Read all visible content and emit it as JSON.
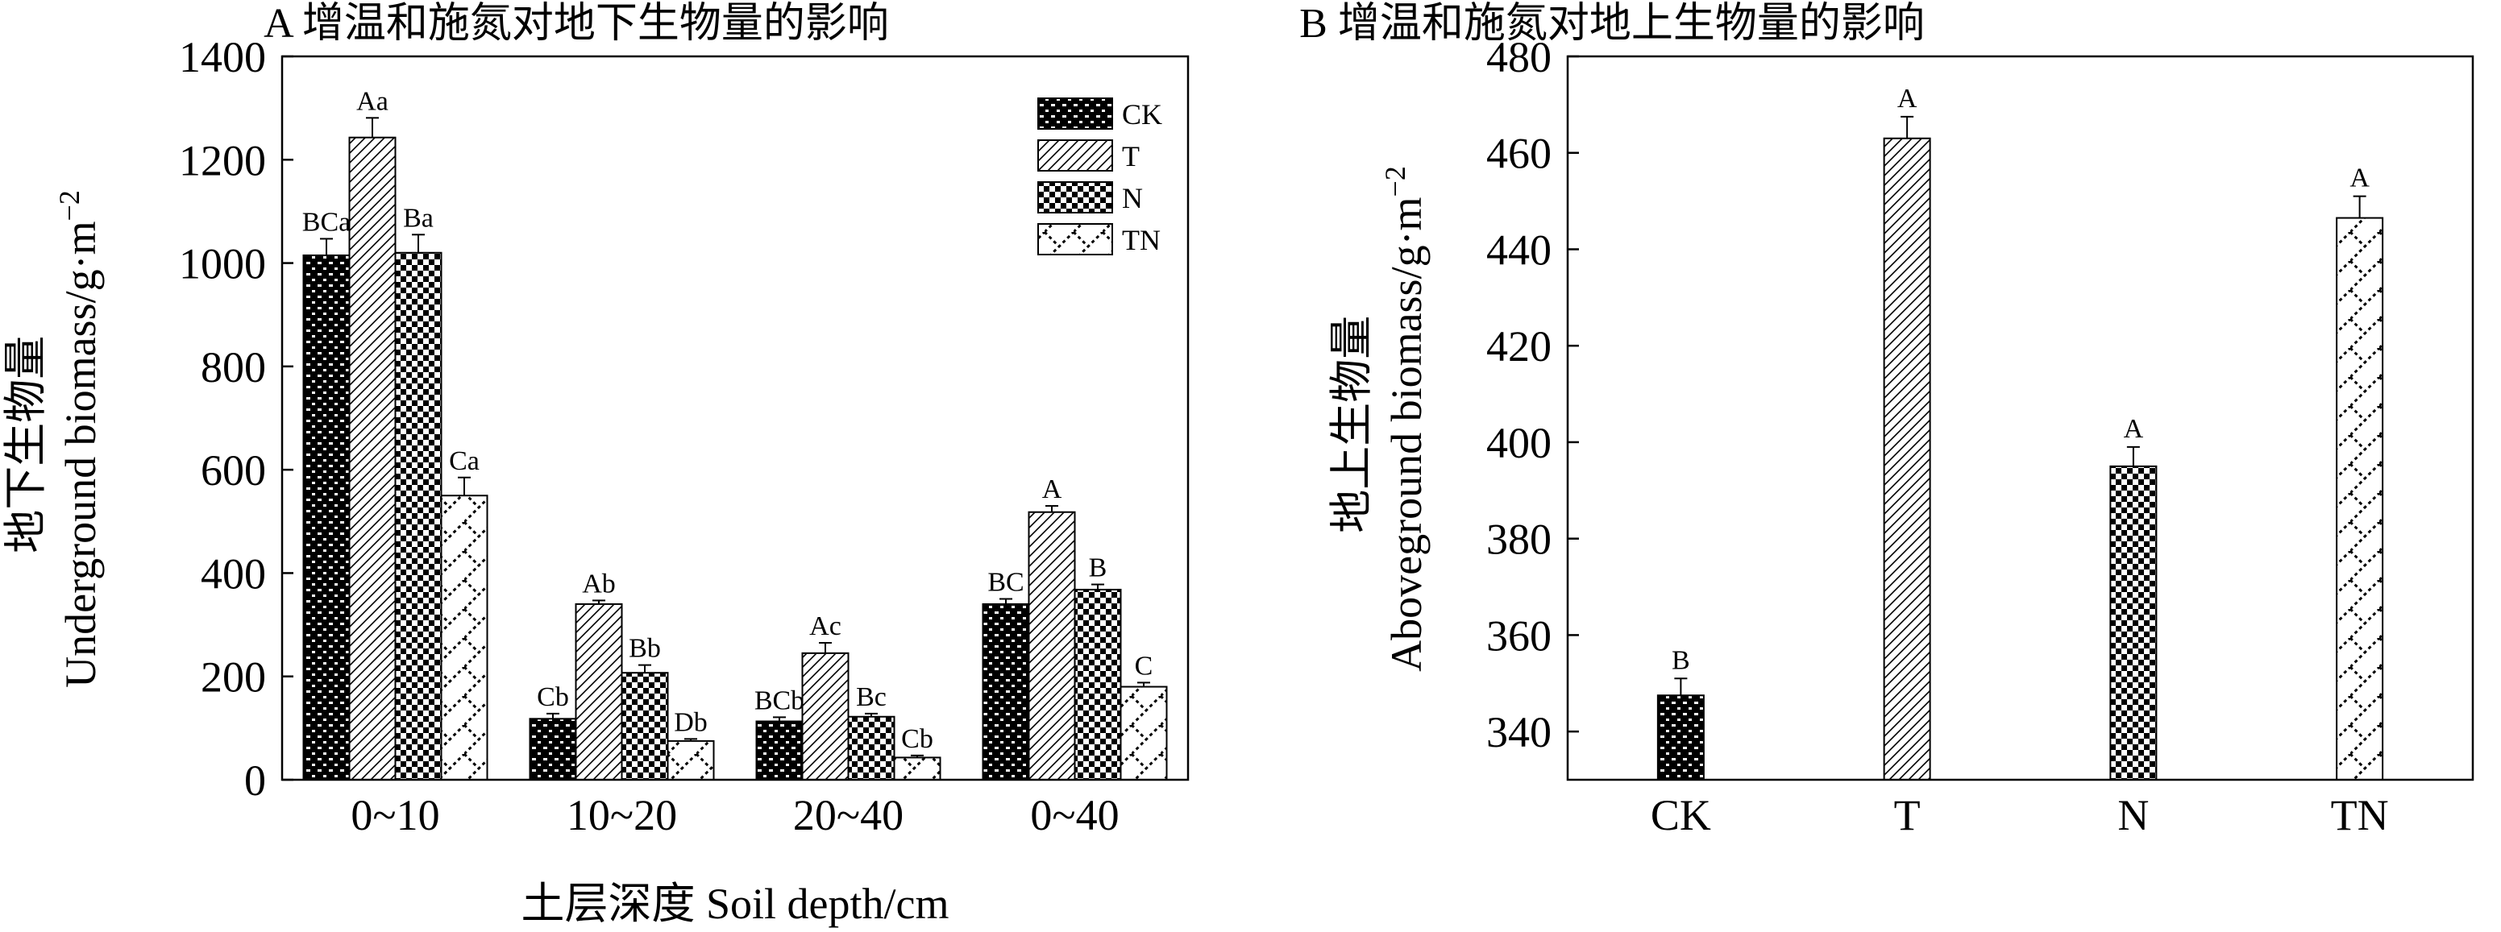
{
  "chart_data": [
    {
      "type": "bar",
      "title": "A 增温和施氮对地下生物量的影响",
      "xlabel": "土层深度 Soil depth/cm",
      "ylabel_cn": "地下生物量",
      "ylabel_en": "Underground biomass/g·m",
      "ylabel_sup": "−2",
      "ylim": [
        0,
        1400
      ],
      "yticks": [
        "0",
        "200",
        "400",
        "600",
        "800",
        "1000",
        "1200",
        "1400"
      ],
      "categories": [
        "0~10",
        "10~20",
        "20~40",
        "0~40"
      ],
      "legend_position": "top-right",
      "series": [
        {
          "name": "CK",
          "values": [
            1015,
            118,
            113,
            340
          ],
          "errors": [
            32,
            10,
            8,
            10
          ],
          "labels": [
            "BCa",
            "Cb",
            "BCb",
            "BC"
          ]
        },
        {
          "name": "T",
          "values": [
            1243,
            340,
            245,
            518
          ],
          "errors": [
            38,
            7,
            20,
            12
          ],
          "labels": [
            "Aa",
            "Ab",
            "Ac",
            "A"
          ]
        },
        {
          "name": "N",
          "values": [
            1020,
            207,
            122,
            368
          ],
          "errors": [
            35,
            15,
            6,
            10
          ],
          "labels": [
            "Ba",
            "Bb",
            "Bc",
            "B"
          ]
        },
        {
          "name": "TN",
          "values": [
            550,
            75,
            43,
            180
          ],
          "errors": [
            35,
            4,
            4,
            8
          ],
          "labels": [
            "Ca",
            "Db",
            "Cb",
            "C"
          ]
        }
      ]
    },
    {
      "type": "bar",
      "title": "B 增温和施氮对地上生物量的影响",
      "ylabel_cn": "地上生物量",
      "ylabel_en": "Aboveground biomass/g·m",
      "ylabel_sup": "−2",
      "ylim": [
        330,
        480
      ],
      "yticks": [
        "340",
        "360",
        "380",
        "400",
        "420",
        "440",
        "460",
        "480"
      ],
      "categories": [
        "CK",
        "T",
        "N",
        "TN"
      ],
      "values": [
        347.5,
        463,
        395,
        446.5
      ],
      "errors": [
        3.5,
        4.5,
        4,
        4.5
      ],
      "labels": [
        "B",
        "A",
        "A",
        "A"
      ]
    }
  ]
}
